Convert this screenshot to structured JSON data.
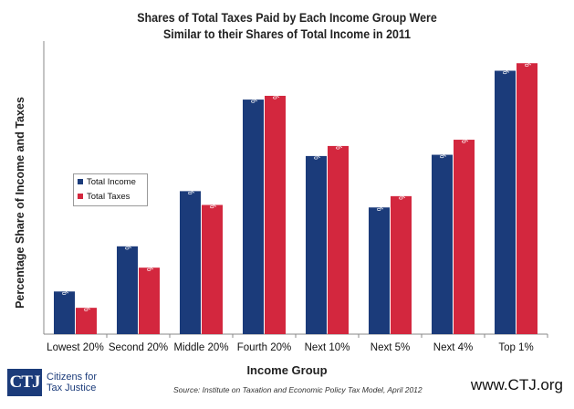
{
  "colors": {
    "income": "#1b3b7a",
    "taxes": "#d3273e"
  },
  "legend": {
    "income": "Total Income",
    "taxes": "Total Taxes"
  },
  "footer": {
    "logo_text": "CTJ",
    "org_line1": "Citizens for",
    "org_line2": "Tax Justice",
    "source": "Source: Institute on Taxation and Economic Policy Tax Model, April 2012",
    "url": "www.CTJ.org"
  },
  "chart_data": {
    "type": "bar",
    "title": "Shares of Total Taxes Paid by Each Income Group Were",
    "subtitle": "Similar to their Shares of Total Income in 2011",
    "xlabel": "Income Group",
    "ylabel": "Percentage Share of Income and Taxes",
    "categories": [
      "Lowest 20%",
      "Second 20%",
      "Middle 20%",
      "Fourth 20%",
      "Next 10%",
      "Next 5%",
      "Next 4%",
      "Top 1%"
    ],
    "series": [
      {
        "name": "Total Income",
        "values": [
          3.4,
          7.0,
          11.4,
          18.7,
          14.2,
          10.1,
          14.3,
          21.0
        ],
        "labels": [
          "3.4%",
          "7.0%",
          "11.4%",
          "18.7%",
          "14.2%",
          "10.1%",
          "14.3%",
          "21.0%"
        ]
      },
      {
        "name": "Total Taxes",
        "values": [
          2.1,
          5.3,
          10.3,
          19.0,
          15.0,
          11.0,
          15.5,
          21.6
        ],
        "labels": [
          "2.1%",
          "5.3%",
          "10.3%",
          "19.0%",
          "15.0%",
          "11.0%",
          "15.5%",
          "21.6%"
        ]
      }
    ],
    "ylim": [
      0,
      23
    ],
    "grid": false,
    "legend_position": "middle-left"
  }
}
